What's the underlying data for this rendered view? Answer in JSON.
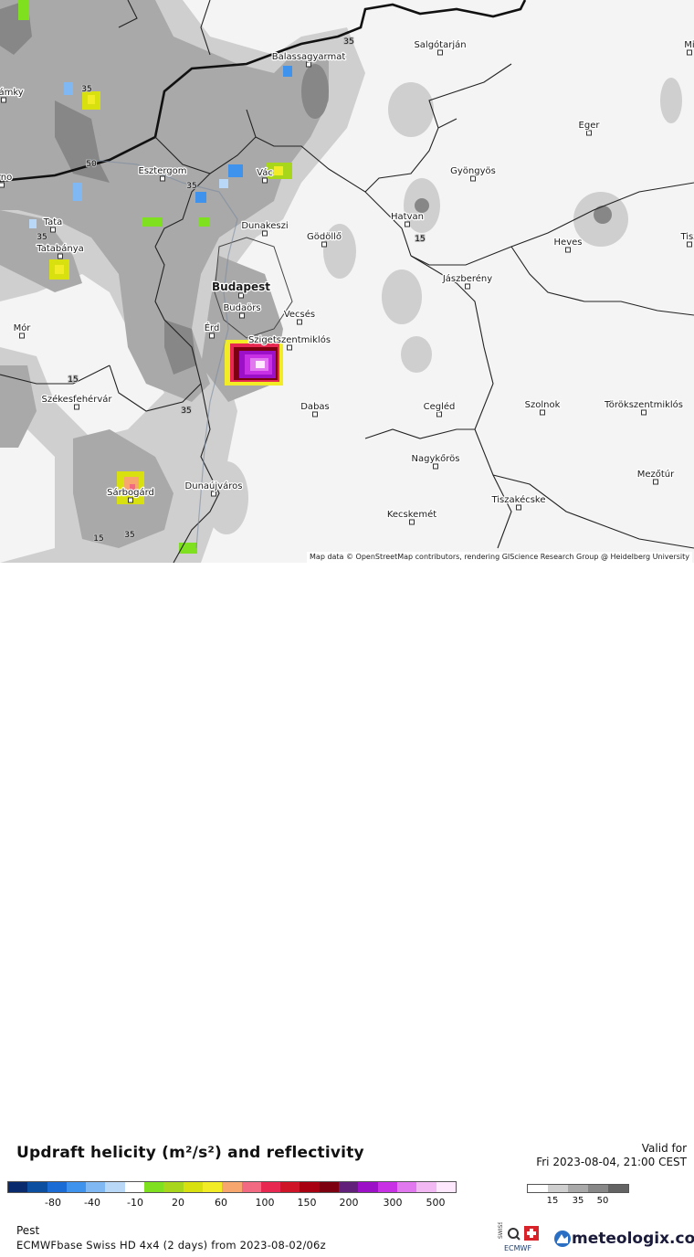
{
  "map": {
    "attribution": "Map data © OpenStreetMap contributors, rendering GIScience Research Group @ Heidelberg University",
    "cities": [
      {
        "name": "Salgótarján"
      },
      {
        "name": "Balassagyarmat"
      },
      {
        "name": "Mi"
      },
      {
        "name": "é Zámky"
      },
      {
        "name": "Eger"
      },
      {
        "name": "Esztergom"
      },
      {
        "name": "Vác"
      },
      {
        "name": "Gyöngyös"
      },
      {
        "name": "árno"
      },
      {
        "name": "Tata"
      },
      {
        "name": "Hatvan"
      },
      {
        "name": "Dunakeszi"
      },
      {
        "name": "Gödöllő"
      },
      {
        "name": "Heves"
      },
      {
        "name": "Tisz"
      },
      {
        "name": "Tatabánya"
      },
      {
        "name": "Jászberény"
      },
      {
        "name": "Budapest"
      },
      {
        "name": "Budaörs"
      },
      {
        "name": "Vecsés"
      },
      {
        "name": "Mór"
      },
      {
        "name": "Érd"
      },
      {
        "name": "Szigetszentmiklós"
      },
      {
        "name": "Székesfehérvár"
      },
      {
        "name": "Dabas"
      },
      {
        "name": "Cegléd"
      },
      {
        "name": "Szolnok"
      },
      {
        "name": "Törökszentmiklós"
      },
      {
        "name": "Nagykőrös"
      },
      {
        "name": "Dunaújváros"
      },
      {
        "name": "Mezőtúr"
      },
      {
        "name": "Tiszakécske"
      },
      {
        "name": "Sárbogárd"
      },
      {
        "name": "Kecskemét"
      }
    ],
    "contour_labels": [
      "35",
      "35",
      "50",
      "35",
      "35",
      "15",
      "15",
      "35",
      "15",
      "35"
    ]
  },
  "legend": {
    "title": "Updraft helicity (m²/s²) and reflectivity",
    "valid_label": "Valid for",
    "valid_time": "Fri 2023-08-04, 21:00 CEST",
    "colorbar_colors": [
      "#0a2a6e",
      "#0c4ea0",
      "#1c6cd6",
      "#3f93ec",
      "#7fb8f2",
      "#b9d8f7",
      "#ffffff",
      "#7fe020",
      "#a8d61a",
      "#d8e010",
      "#f2ec26",
      "#f7a66e",
      "#f26a82",
      "#e82850",
      "#d01428",
      "#a80010",
      "#7c0010",
      "#62207a",
      "#9c10c8",
      "#c830e6",
      "#e278f0",
      "#f2b8f4",
      "#fde8fd"
    ],
    "colorbar_ticks": [
      "-80",
      "-40",
      "-10",
      "20",
      "60",
      "100",
      "150",
      "200",
      "300",
      "500"
    ],
    "graybar_colors": [
      "#ffffff",
      "#cfcfcf",
      "#a9a9a9",
      "#878787",
      "#636363"
    ],
    "graybar_ticks": [
      "15",
      "35",
      "50"
    ],
    "region": "Pest",
    "model": "ECMWFbase Swiss HD 4x4 (2 days) from  2023-08-02/06z",
    "brand": "meteologix.com",
    "swiss_hd_text": "SWISS",
    "ecmwf_text": "ECMWF"
  }
}
